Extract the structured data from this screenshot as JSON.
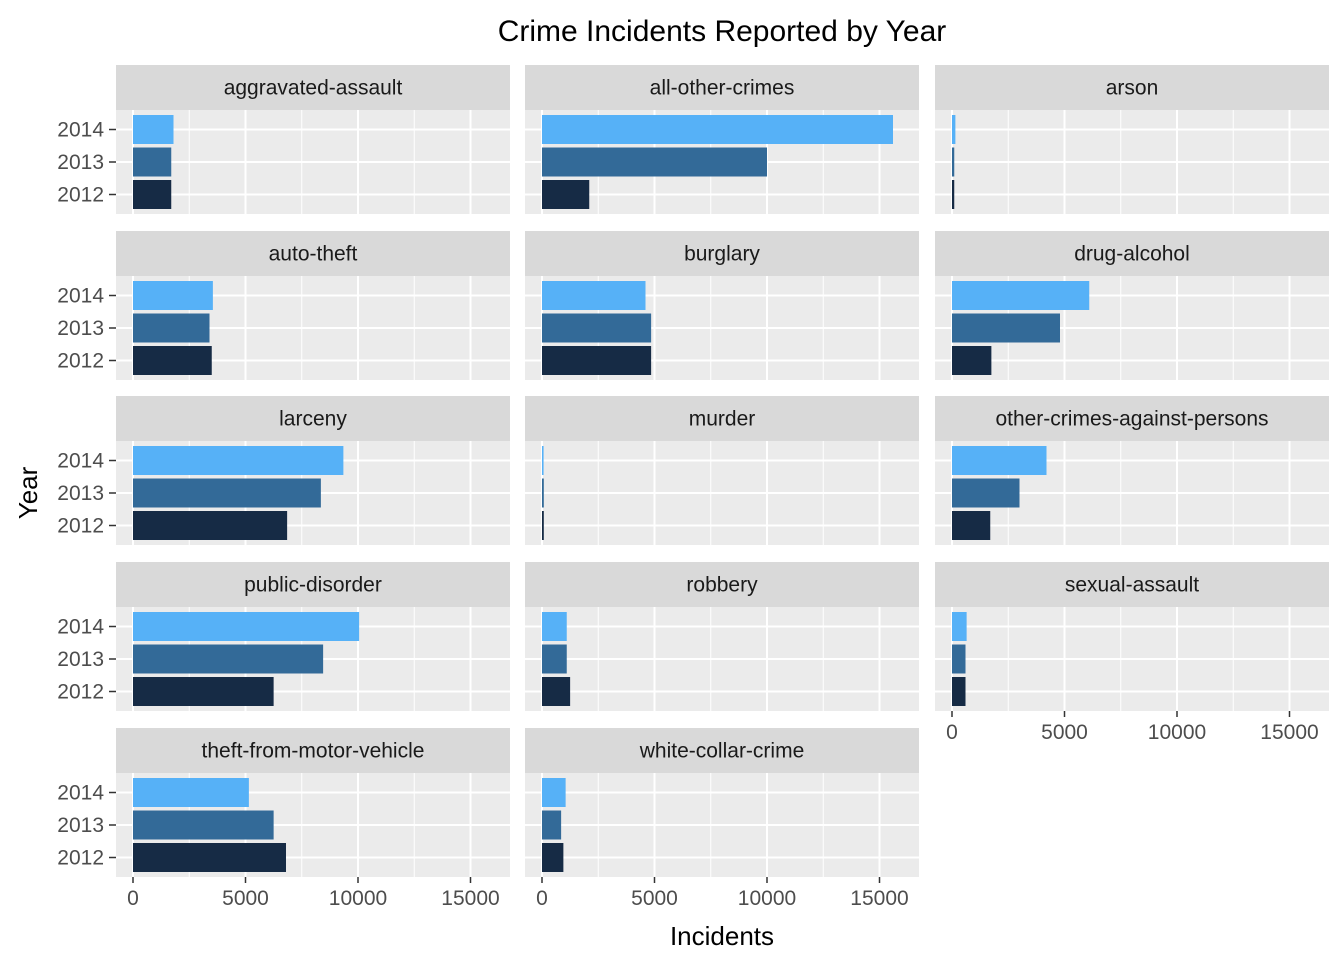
{
  "chart_data": {
    "type": "bar",
    "orientation": "horizontal",
    "title": "Crime Incidents Reported by Year",
    "xlabel": "Incidents",
    "ylabel": "Year",
    "xlim": [
      0,
      16000
    ],
    "x_ticks": [
      0,
      5000,
      10000,
      15000
    ],
    "categories": [
      "2012",
      "2013",
      "2014"
    ],
    "grid": true,
    "legend": "none",
    "colors": {
      "2012": "#162b45",
      "2013": "#336a98",
      "2014": "#56b1f7",
      "panel_bg": "#ebebeb",
      "strip_bg": "#d9d9d9",
      "grid": "#ffffff"
    },
    "facets": [
      {
        "name": "aggravated-assault",
        "values": {
          "2012": 1700,
          "2013": 1700,
          "2014": 1800
        }
      },
      {
        "name": "all-other-crimes",
        "values": {
          "2012": 2100,
          "2013": 10000,
          "2014": 15600
        }
      },
      {
        "name": "arson",
        "values": {
          "2012": 100,
          "2013": 100,
          "2014": 150
        }
      },
      {
        "name": "auto-theft",
        "values": {
          "2012": 3500,
          "2013": 3400,
          "2014": 3550
        }
      },
      {
        "name": "burglary",
        "values": {
          "2012": 4850,
          "2013": 4850,
          "2014": 4600
        }
      },
      {
        "name": "drug-alcohol",
        "values": {
          "2012": 1750,
          "2013": 4800,
          "2014": 6100
        }
      },
      {
        "name": "larceny",
        "values": {
          "2012": 6850,
          "2013": 8350,
          "2014": 9350
        }
      },
      {
        "name": "murder",
        "values": {
          "2012": 80,
          "2013": 80,
          "2014": 70
        }
      },
      {
        "name": "other-crimes-against-persons",
        "values": {
          "2012": 1700,
          "2013": 3000,
          "2014": 4200
        }
      },
      {
        "name": "public-disorder",
        "values": {
          "2012": 6250,
          "2013": 8450,
          "2014": 10050
        }
      },
      {
        "name": "robbery",
        "values": {
          "2012": 1250,
          "2013": 1100,
          "2014": 1100
        }
      },
      {
        "name": "sexual-assault",
        "values": {
          "2012": 600,
          "2013": 600,
          "2014": 650
        }
      },
      {
        "name": "theft-from-motor-vehicle",
        "values": {
          "2012": 6800,
          "2013": 6250,
          "2014": 5150
        }
      },
      {
        "name": "white-collar-crime",
        "values": {
          "2012": 950,
          "2013": 850,
          "2014": 1050
        }
      }
    ]
  }
}
